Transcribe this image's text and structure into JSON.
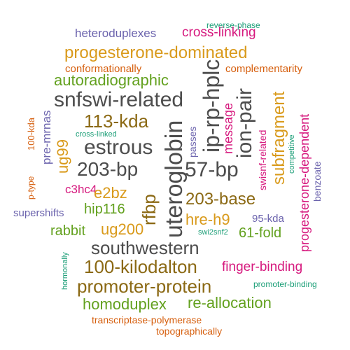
{
  "words": [
    "reverse-phase",
    "heteroduplexes",
    "cross-linking",
    "progesterone-dominated",
    "conformationally",
    "complementarity",
    "autoradiographic",
    "snfswi-related",
    "ip-rp-hplc",
    "ion-pair",
    "113-kda",
    "estrous",
    "203-bp",
    "uteroglobin",
    "57-bp",
    "message",
    "subfragment",
    "progesterone-dependent",
    "100-kda",
    "pre-mrnas",
    "cross-linked",
    "ug99",
    "passes",
    "swisnf-related",
    "competitive",
    "benzoate",
    "p-type",
    "c3hc4",
    "e2bz",
    "rfbp",
    "203-base",
    "supershifts",
    "hip116",
    "hre-h9",
    "95-kda",
    "rabbit",
    "ug200",
    "swi2snf2",
    "61-fold",
    "hormonally",
    "southwestern",
    "100-kilodalton",
    "finger-binding",
    "promoter-protein",
    "promoter-binding",
    "homoduplex",
    "re-allocation",
    "transcriptase-polymerase",
    "topographically"
  ]
}
